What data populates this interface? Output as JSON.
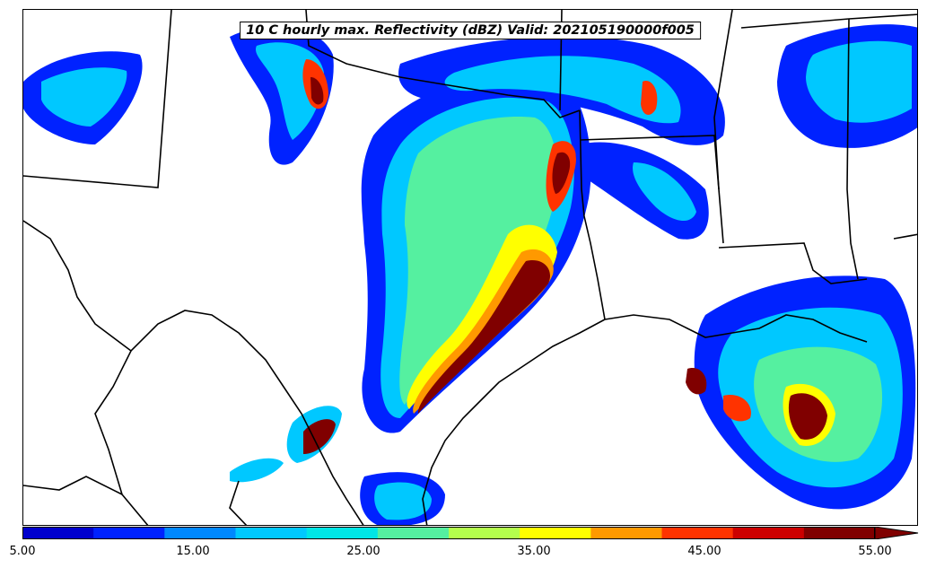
{
  "title": "10 C hourly max. Reflectivity (dBZ) Valid: 202105190000f005",
  "colorbar": {
    "colors": [
      "#0000cd",
      "#0022ff",
      "#0088ff",
      "#00c8ff",
      "#00e6e6",
      "#55f0a0",
      "#b4ff4d",
      "#ffff00",
      "#ff9900",
      "#ff3300",
      "#cc0000",
      "#800000"
    ],
    "ticks": [
      "5.00",
      "15.00",
      "25.00",
      "35.00",
      "45.00",
      "55.00"
    ],
    "extend": "max"
  }
}
